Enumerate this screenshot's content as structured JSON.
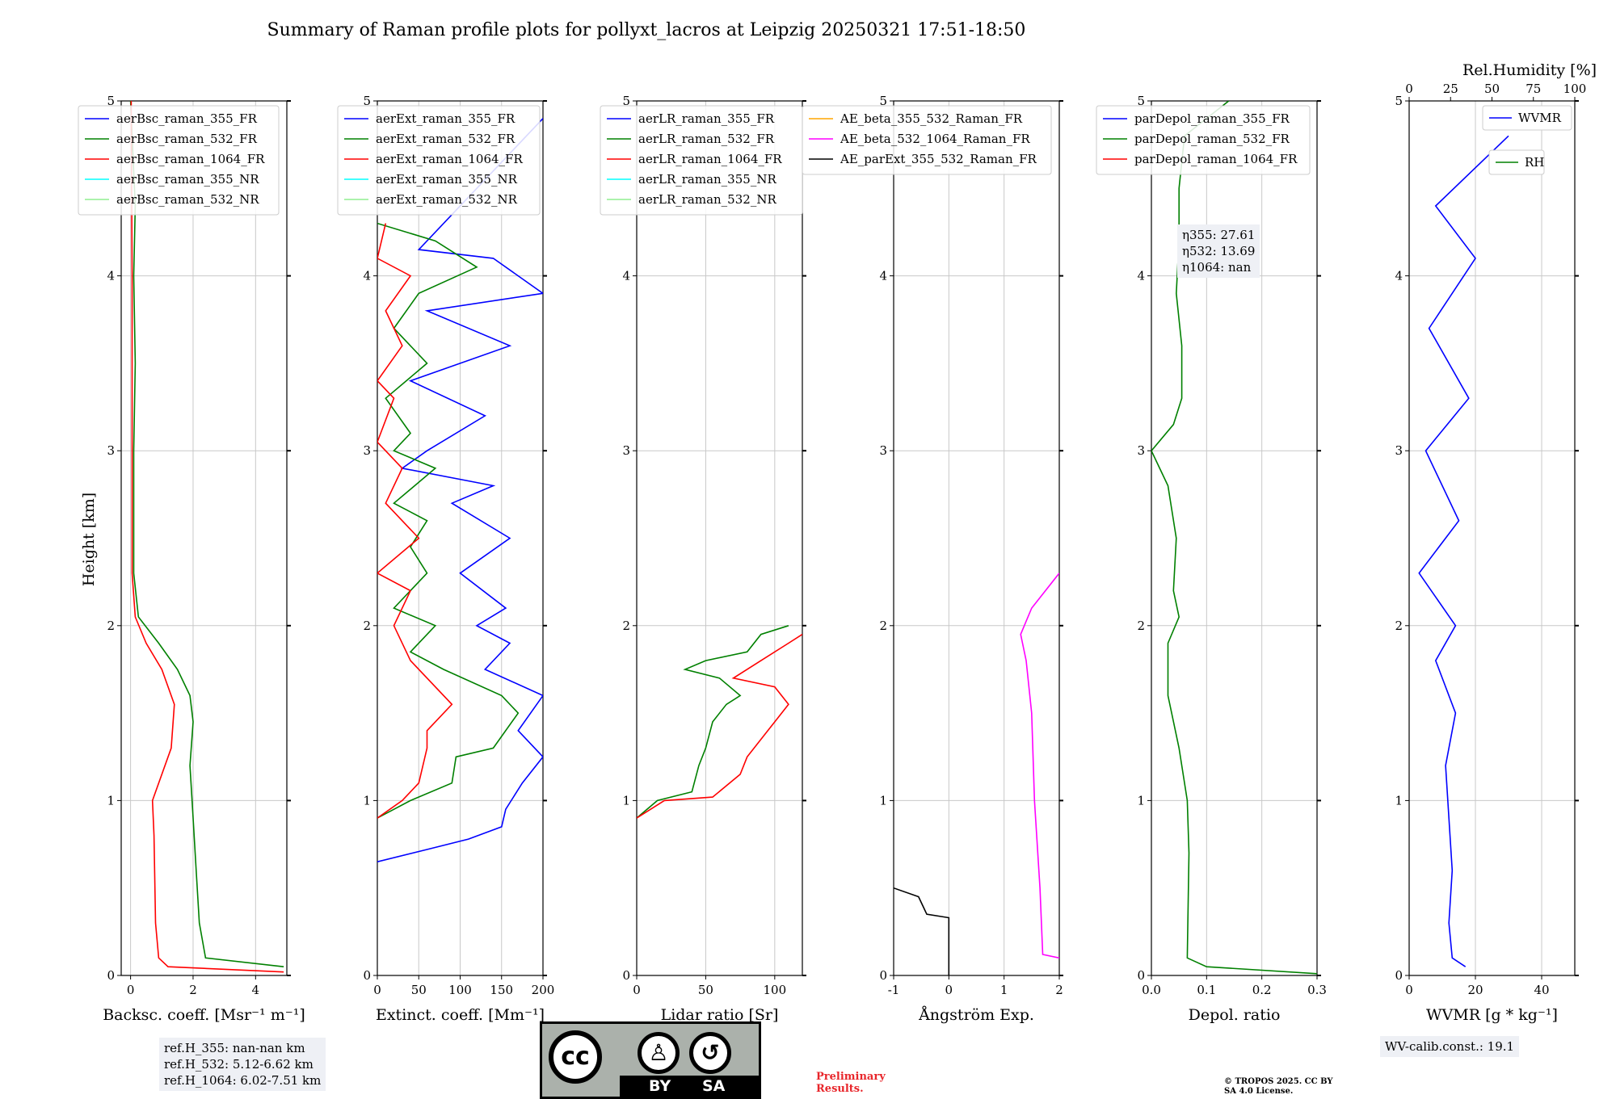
{
  "title": "Summary of Raman profile plots for pollyxt_lacros at Leipzig 20250321 17:51-18:50",
  "ylabel": "Height [km]",
  "y_ticks": [
    "0",
    "1",
    "2",
    "3",
    "4",
    "5"
  ],
  "notes": {
    "refH_355": "ref.H_355: nan-nan km",
    "refH_532": "ref.H_532: 5.12-6.62 km",
    "refH_1064": "ref.H_1064: 6.02-7.51 km",
    "eta355": "η355: 27.61",
    "eta532": "η532: 13.69",
    "eta1064": "η1064: nan",
    "wv_calib": "WV-calib.const.: 19.1",
    "preliminary": "Preliminary Results.",
    "copyright": "© TROPOS 2025. CC BY SA 4.0 License."
  },
  "license_badge": {
    "text_left": "BY",
    "text_right": "SA",
    "icon": "cc-by-sa-icon"
  },
  "chart_data": [
    {
      "type": "line",
      "xlabel": "Backsc. coeff. [Msr⁻¹ m⁻¹]",
      "xlim": [
        -0.3,
        5
      ],
      "xticks": [
        0,
        2,
        4
      ],
      "ylim": [
        0,
        5
      ],
      "series": [
        {
          "name": "aerBsc_raman_355_FR",
          "color": "#0000ff",
          "points": []
        },
        {
          "name": "aerBsc_raman_532_FR",
          "color": "#008000",
          "points": [
            [
              4.9,
              0.05
            ],
            [
              2.4,
              0.1
            ],
            [
              2.2,
              0.3
            ],
            [
              2.1,
              0.6
            ],
            [
              2.0,
              0.9
            ],
            [
              1.9,
              1.2
            ],
            [
              2.0,
              1.45
            ],
            [
              1.9,
              1.6
            ],
            [
              1.5,
              1.75
            ],
            [
              0.9,
              1.9
            ],
            [
              0.25,
              2.05
            ],
            [
              0.1,
              2.3
            ],
            [
              0.1,
              3
            ],
            [
              0.15,
              3.5
            ],
            [
              0.1,
              4
            ],
            [
              0.15,
              4.4
            ],
            [
              0.05,
              4.8
            ],
            [
              0,
              5
            ]
          ]
        },
        {
          "name": "aerBsc_raman_1064_FR",
          "color": "#ff0000",
          "points": [
            [
              4.9,
              0.02
            ],
            [
              1.2,
              0.05
            ],
            [
              0.9,
              0.1
            ],
            [
              0.8,
              0.3
            ],
            [
              0.75,
              0.8
            ],
            [
              0.7,
              1.0
            ],
            [
              1.3,
              1.3
            ],
            [
              1.4,
              1.55
            ],
            [
              1.0,
              1.75
            ],
            [
              0.5,
              1.9
            ],
            [
              0.15,
              2.05
            ],
            [
              0.05,
              2.3
            ],
            [
              0.05,
              3
            ],
            [
              0.05,
              4
            ],
            [
              0.02,
              5
            ]
          ]
        },
        {
          "name": "aerBsc_raman_355_NR",
          "color": "#00ffff",
          "points": []
        },
        {
          "name": "aerBsc_raman_532_NR",
          "color": "#90ee90",
          "points": []
        }
      ]
    },
    {
      "type": "line",
      "xlabel": "Extinct. coeff. [Mm⁻¹]",
      "xlim": [
        0,
        200
      ],
      "xticks": [
        0,
        50,
        100,
        150,
        200
      ],
      "ylim": [
        0,
        5
      ],
      "series": [
        {
          "name": "aerExt_raman_355_FR",
          "color": "#0000ff",
          "points": [
            [
              0,
              0.65
            ],
            [
              60,
              0.72
            ],
            [
              110,
              0.78
            ],
            [
              150,
              0.85
            ],
            [
              155,
              0.95
            ],
            [
              175,
              1.1
            ],
            [
              200,
              1.25
            ],
            [
              170,
              1.4
            ],
            [
              200,
              1.6
            ],
            [
              130,
              1.75
            ],
            [
              160,
              1.9
            ],
            [
              120,
              2.0
            ],
            [
              155,
              2.1
            ],
            [
              100,
              2.3
            ],
            [
              160,
              2.5
            ],
            [
              90,
              2.7
            ],
            [
              140,
              2.8
            ],
            [
              30,
              2.9
            ],
            [
              60,
              3.0
            ],
            [
              130,
              3.2
            ],
            [
              40,
              3.4
            ],
            [
              160,
              3.6
            ],
            [
              60,
              3.8
            ],
            [
              200,
              3.9
            ],
            [
              140,
              4.1
            ],
            [
              50,
              4.15
            ],
            [
              200,
              4.9
            ]
          ]
        },
        {
          "name": "aerExt_raman_532_FR",
          "color": "#008000",
          "points": [
            [
              0,
              0.9
            ],
            [
              40,
              1.0
            ],
            [
              90,
              1.1
            ],
            [
              95,
              1.25
            ],
            [
              140,
              1.3
            ],
            [
              170,
              1.5
            ],
            [
              150,
              1.6
            ],
            [
              80,
              1.75
            ],
            [
              40,
              1.85
            ],
            [
              70,
              2.0
            ],
            [
              20,
              2.1
            ],
            [
              60,
              2.3
            ],
            [
              40,
              2.45
            ],
            [
              60,
              2.6
            ],
            [
              20,
              2.7
            ],
            [
              70,
              2.9
            ],
            [
              20,
              3.0
            ],
            [
              40,
              3.1
            ],
            [
              10,
              3.3
            ],
            [
              60,
              3.5
            ],
            [
              20,
              3.7
            ],
            [
              50,
              3.9
            ],
            [
              120,
              4.05
            ],
            [
              70,
              4.2
            ],
            [
              0,
              4.3
            ]
          ]
        },
        {
          "name": "aerExt_raman_1064_FR",
          "color": "#ff0000",
          "points": [
            [
              0,
              0.9
            ],
            [
              30,
              1.0
            ],
            [
              50,
              1.1
            ],
            [
              60,
              1.3
            ],
            [
              60,
              1.4
            ],
            [
              90,
              1.55
            ],
            [
              40,
              1.8
            ],
            [
              20,
              2.0
            ],
            [
              40,
              2.2
            ],
            [
              0,
              2.3
            ],
            [
              50,
              2.5
            ],
            [
              10,
              2.7
            ],
            [
              30,
              2.9
            ],
            [
              0,
              3.05
            ],
            [
              20,
              3.3
            ],
            [
              0,
              3.4
            ],
            [
              30,
              3.6
            ],
            [
              10,
              3.8
            ],
            [
              40,
              4.0
            ],
            [
              0,
              4.1
            ],
            [
              10,
              4.3
            ]
          ]
        },
        {
          "name": "aerExt_raman_355_NR",
          "color": "#00ffff",
          "points": []
        },
        {
          "name": "aerExt_raman_532_NR",
          "color": "#90ee90",
          "points": []
        }
      ]
    },
    {
      "type": "line",
      "xlabel": "Lidar ratio [Sr]",
      "xlim": [
        0,
        120
      ],
      "xticks": [
        0,
        50,
        100
      ],
      "ylim": [
        0,
        5
      ],
      "series": [
        {
          "name": "aerLR_raman_355_FR",
          "color": "#0000ff",
          "points": []
        },
        {
          "name": "aerLR_raman_532_FR",
          "color": "#008000",
          "points": [
            [
              0,
              0.9
            ],
            [
              15,
              1.0
            ],
            [
              40,
              1.05
            ],
            [
              45,
              1.2
            ],
            [
              50,
              1.3
            ],
            [
              55,
              1.45
            ],
            [
              65,
              1.55
            ],
            [
              75,
              1.6
            ],
            [
              60,
              1.7
            ],
            [
              35,
              1.75
            ],
            [
              50,
              1.8
            ],
            [
              80,
              1.85
            ],
            [
              90,
              1.95
            ],
            [
              110,
              2.0
            ]
          ]
        },
        {
          "name": "aerLR_raman_1064_FR",
          "color": "#ff0000",
          "points": [
            [
              0,
              0.9
            ],
            [
              20,
              1.0
            ],
            [
              55,
              1.02
            ],
            [
              75,
              1.15
            ],
            [
              80,
              1.25
            ],
            [
              95,
              1.4
            ],
            [
              110,
              1.55
            ],
            [
              100,
              1.65
            ],
            [
              70,
              1.7
            ],
            [
              90,
              1.8
            ],
            [
              110,
              1.9
            ],
            [
              120,
              1.95
            ]
          ]
        },
        {
          "name": "aerLR_raman_355_NR",
          "color": "#00ffff",
          "points": []
        },
        {
          "name": "aerLR_raman_532_NR",
          "color": "#90ee90",
          "points": []
        }
      ]
    },
    {
      "type": "line",
      "xlabel": "Ångström Exp.",
      "xlim": [
        -1,
        2
      ],
      "xticks": [
        -1,
        0,
        1,
        2
      ],
      "ylim": [
        0,
        5
      ],
      "series": [
        {
          "name": "AE_beta_355_532_Raman_FR",
          "color": "#ffa500",
          "points": []
        },
        {
          "name": "AE_beta_532_1064_Raman_FR",
          "color": "#ff00ff",
          "points": [
            [
              2,
              0.1
            ],
            [
              1.7,
              0.12
            ],
            [
              1.65,
              0.5
            ],
            [
              1.55,
              1.0
            ],
            [
              1.5,
              1.5
            ],
            [
              1.4,
              1.8
            ],
            [
              1.3,
              1.95
            ],
            [
              1.5,
              2.1
            ],
            [
              2,
              2.3
            ]
          ]
        },
        {
          "name": "AE_parExt_355_532_Raman_FR",
          "color": "#000000",
          "points": [
            [
              0,
              0
            ],
            [
              0,
              0.33
            ],
            [
              -0.4,
              0.35
            ],
            [
              -0.55,
              0.45
            ],
            [
              -1,
              0.5
            ]
          ]
        }
      ]
    },
    {
      "type": "line",
      "xlabel": "Depol. ratio",
      "xlim": [
        0,
        0.3
      ],
      "xticks": [
        0.0,
        0.1,
        0.2,
        0.3
      ],
      "ylim": [
        0,
        5
      ],
      "series": [
        {
          "name": "parDepol_raman_355_FR",
          "color": "#0000ff",
          "points": []
        },
        {
          "name": "parDepol_raman_532_FR",
          "color": "#008000",
          "points": [
            [
              0.3,
              0.01
            ],
            [
              0.1,
              0.05
            ],
            [
              0.065,
              0.1
            ],
            [
              0.066,
              0.3
            ],
            [
              0.068,
              0.7
            ],
            [
              0.065,
              1.0
            ],
            [
              0.05,
              1.3
            ],
            [
              0.03,
              1.6
            ],
            [
              0.03,
              1.9
            ],
            [
              0.05,
              2.05
            ],
            [
              0.04,
              2.2
            ],
            [
              0.045,
              2.5
            ],
            [
              0.03,
              2.8
            ],
            [
              0.0,
              3.0
            ],
            [
              0.04,
              3.15
            ],
            [
              0.055,
              3.3
            ],
            [
              0.055,
              3.6
            ],
            [
              0.045,
              3.9
            ],
            [
              0.05,
              4.2
            ],
            [
              0.05,
              4.5
            ],
            [
              0.06,
              4.8
            ],
            [
              0.14,
              5.0
            ]
          ]
        },
        {
          "name": "parDepol_raman_1064_FR",
          "color": "#ff0000",
          "points": []
        }
      ]
    },
    {
      "type": "line",
      "xlabel": "WVMR [g * kg⁻¹]",
      "xlim": [
        0,
        50
      ],
      "xticks": [
        0,
        20,
        40
      ],
      "top_label": "Rel.Humidity [%]",
      "top_xticks": [
        0,
        25,
        50,
        75,
        100
      ],
      "ylim": [
        0,
        5
      ],
      "series": [
        {
          "name": "WVMR",
          "color": "#0000ff",
          "points": [
            [
              17,
              0.05
            ],
            [
              13,
              0.1
            ],
            [
              12,
              0.3
            ],
            [
              13,
              0.6
            ],
            [
              12,
              0.9
            ],
            [
              11,
              1.2
            ],
            [
              14,
              1.5
            ],
            [
              8,
              1.8
            ],
            [
              14,
              2.0
            ],
            [
              3,
              2.3
            ],
            [
              15,
              2.6
            ],
            [
              5,
              3.0
            ],
            [
              18,
              3.3
            ],
            [
              6,
              3.7
            ],
            [
              20,
              4.1
            ],
            [
              8,
              4.4
            ],
            [
              30,
              4.8
            ]
          ]
        },
        {
          "name": "RH",
          "color": "#008000",
          "points": []
        }
      ]
    }
  ]
}
